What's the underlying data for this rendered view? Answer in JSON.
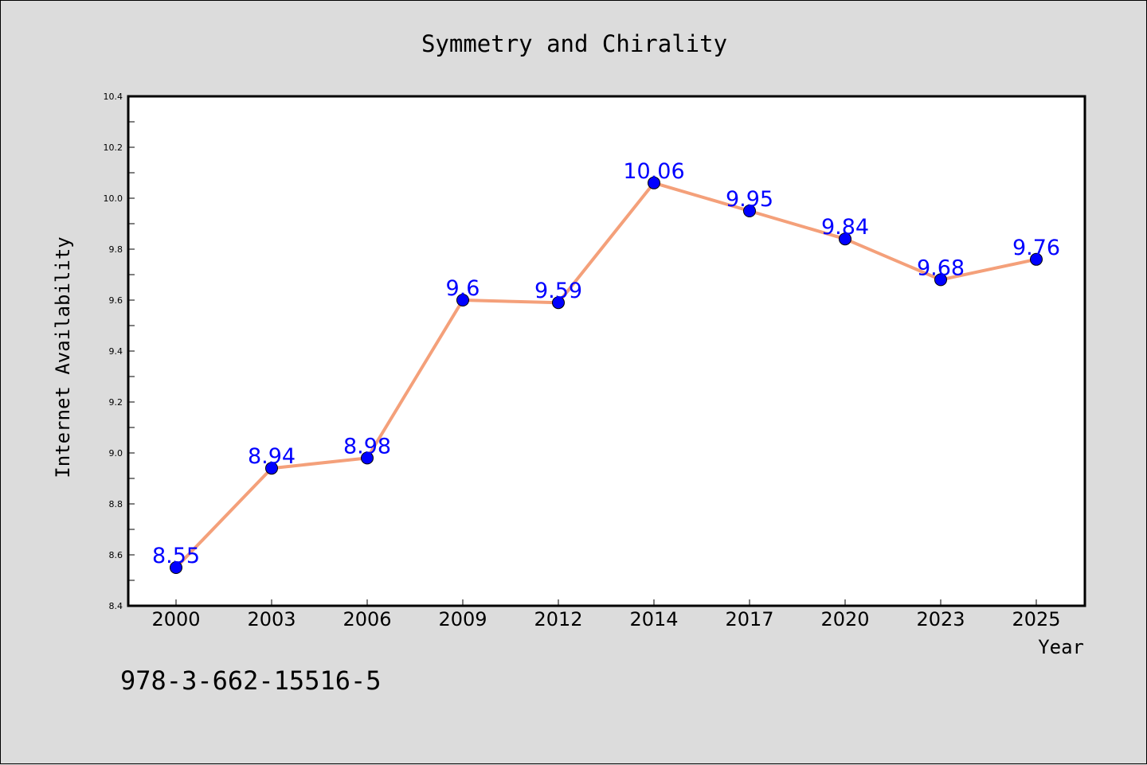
{
  "chart_data": {
    "type": "line",
    "title": "Symmetry and Chirality",
    "xlabel": "Year",
    "ylabel": "Internet Availability",
    "categories": [
      "2000",
      "2003",
      "2006",
      "2009",
      "2012",
      "2014",
      "2017",
      "2020",
      "2023",
      "2025"
    ],
    "series": [
      {
        "values": [
          8.55,
          8.94,
          8.98,
          9.6,
          9.59,
          10.06,
          9.95,
          9.84,
          9.68,
          9.76
        ],
        "labels": [
          "8.55",
          "8.94",
          "8.98",
          "9.6",
          "9.59",
          "10.06",
          "9.95",
          "9.84",
          "9.68",
          "9.76"
        ]
      }
    ],
    "ylim": [
      8.4,
      10.4
    ],
    "yticks": [
      "8.4",
      "8.6",
      "8.8",
      "9.0",
      "9.2",
      "9.4",
      "9.6",
      "9.8",
      "10.0",
      "10.2",
      "10.4"
    ],
    "grid": false,
    "colors": {
      "line": "#f4a07a",
      "marker": "#0000ff",
      "label": "#0000ff",
      "background": "#dcdcdc",
      "plot_area": "#ffffff"
    }
  },
  "footnote": "978-3-662-15516-5"
}
